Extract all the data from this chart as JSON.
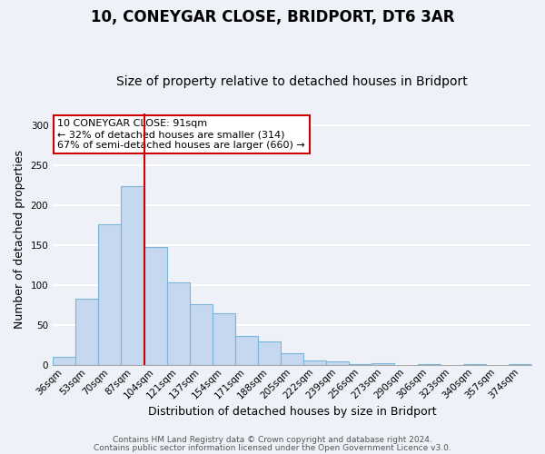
{
  "title": "10, CONEYGAR CLOSE, BRIDPORT, DT6 3AR",
  "subtitle": "Size of property relative to detached houses in Bridport",
  "xlabel": "Distribution of detached houses by size in Bridport",
  "ylabel": "Number of detached properties",
  "categories": [
    "36sqm",
    "53sqm",
    "70sqm",
    "87sqm",
    "104sqm",
    "121sqm",
    "137sqm",
    "154sqm",
    "171sqm",
    "188sqm",
    "205sqm",
    "222sqm",
    "239sqm",
    "256sqm",
    "273sqm",
    "290sqm",
    "306sqm",
    "323sqm",
    "340sqm",
    "357sqm",
    "374sqm"
  ],
  "values": [
    10,
    83,
    176,
    224,
    148,
    103,
    76,
    64,
    36,
    29,
    15,
    5,
    4,
    1,
    2,
    0,
    1,
    0,
    1,
    0,
    1
  ],
  "bar_color": "#c5d8f0",
  "bar_edge_color": "#7ab4d8",
  "vline_x": 3.5,
  "vline_color": "#cc0000",
  "annotation_box_text": "10 CONEYGAR CLOSE: 91sqm\n← 32% of detached houses are smaller (314)\n67% of semi-detached houses are larger (660) →",
  "box_color": "#ffffff",
  "box_edge_color": "#cc0000",
  "ylim": [
    0,
    315
  ],
  "yticks": [
    0,
    50,
    100,
    150,
    200,
    250,
    300
  ],
  "footer_line1": "Contains HM Land Registry data © Crown copyright and database right 2024.",
  "footer_line2": "Contains public sector information licensed under the Open Government Licence v3.0.",
  "background_color": "#eef2f8",
  "grid_color": "#ffffff",
  "title_fontsize": 12,
  "subtitle_fontsize": 10,
  "axis_label_fontsize": 9,
  "tick_fontsize": 7.5,
  "footer_fontsize": 6.5,
  "annotation_fontsize": 8
}
